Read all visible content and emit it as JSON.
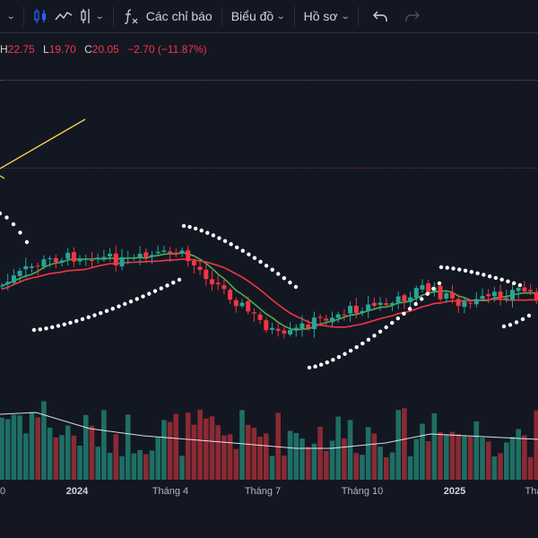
{
  "toolbar": {
    "indicators_label": "Các chỉ báo",
    "chart_label": "Biểu đồ",
    "profile_label": "Hồ sơ"
  },
  "legend": {
    "h_key": "H",
    "h_val": "22.75",
    "l_key": "L",
    "l_val": "19.70",
    "c_key": "C",
    "c_val": "20.05",
    "change": "−2.70 (−11.87%)"
  },
  "colors": {
    "background": "#131722",
    "up": "#26a69a",
    "down": "#f23645",
    "ma_fast": "#4caf50",
    "ma_slow": "#f23645",
    "sar": "#ffffff",
    "trendline": "#f7d44a",
    "volume_ma": "#ffffff"
  },
  "x_axis": {
    "labels": [
      {
        "text": "0",
        "bold": false
      },
      {
        "text": "2024",
        "bold": true
      },
      {
        "text": "Tháng 4",
        "bold": false
      },
      {
        "text": "Tháng 7",
        "bold": false
      },
      {
        "text": "Tháng 10",
        "bold": false
      },
      {
        "text": "2025",
        "bold": true
      },
      {
        "text": "Thá",
        "bold": false
      }
    ]
  },
  "icons": [
    "chevron-down-icon",
    "candles-icon",
    "line-chart-icon",
    "bars-icon",
    "fx-icon",
    "undo-icon",
    "redo-icon"
  ]
}
